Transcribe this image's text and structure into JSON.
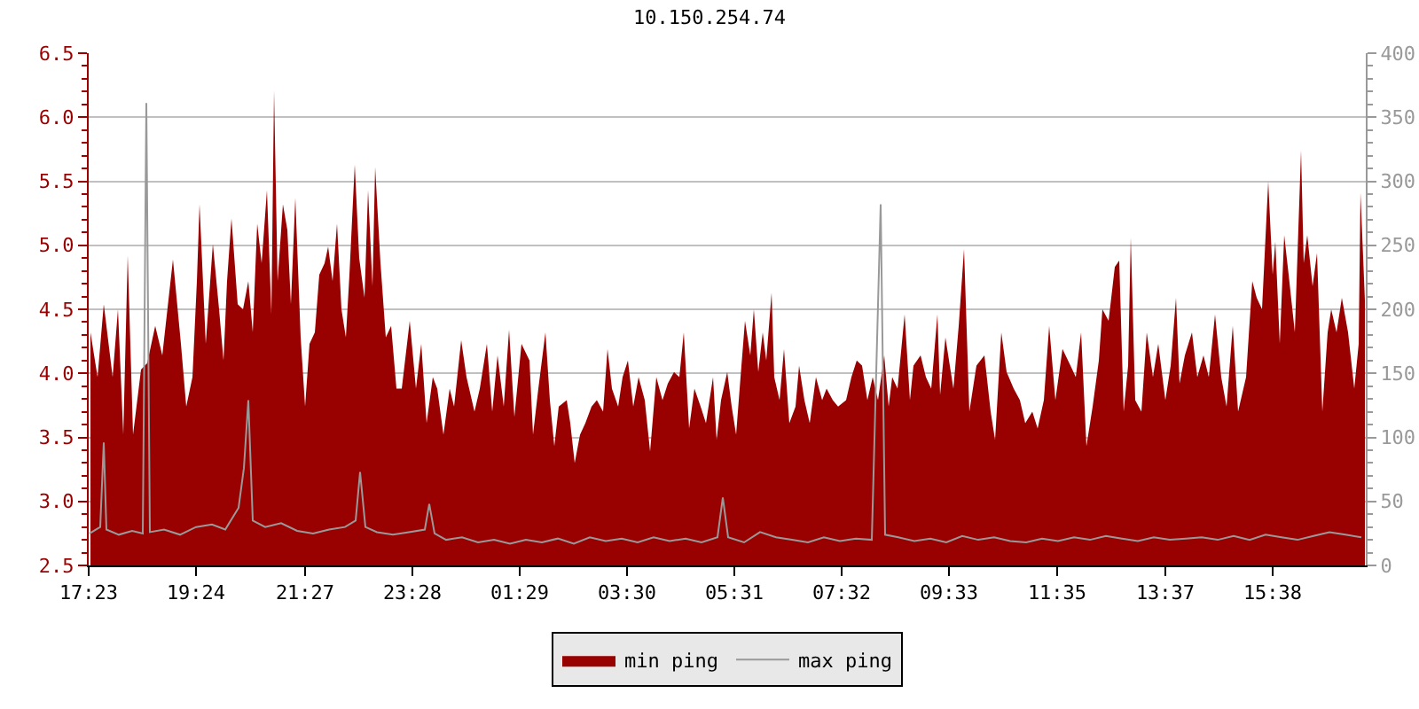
{
  "chart_data": {
    "type": "area",
    "title": "10.150.254.74",
    "grid": "y",
    "legend": "bottom",
    "xlim": [
      "--01-01T17:23",
      "--01-02T17:23"
    ],
    "xticks": [
      {
        "value": "--01-01T17:23",
        "label": "17:23"
      },
      {
        "value": "--01-01T19:24",
        "label": "19:24"
      },
      {
        "value": "--01-01T21:27",
        "label": "21:27"
      },
      {
        "value": "--01-01T23:28",
        "label": "23:28"
      },
      {
        "value": "--01-02T01:29",
        "label": "01:29"
      },
      {
        "value": "--01-02T03:30",
        "label": "03:30"
      },
      {
        "value": "--01-02T05:31",
        "label": "05:31"
      },
      {
        "value": "--01-02T07:32",
        "label": "07:32"
      },
      {
        "value": "--01-02T09:33",
        "label": "09:33"
      },
      {
        "value": "--01-02T11:35",
        "label": "11:35"
      },
      {
        "value": "--01-02T13:37",
        "label": "13:37"
      },
      {
        "value": "--01-02T15:38",
        "label": "15:38"
      }
    ],
    "ylim": [
      2.5,
      6.5
    ],
    "yticks": [
      2.5,
      {
        "value": 3,
        "label": "3.0"
      },
      3.5,
      {
        "value": 4,
        "label": "4.0"
      },
      4.5,
      {
        "value": 5,
        "label": "5.0"
      },
      5.5,
      {
        "value": 6,
        "label": "6.0"
      },
      6.5
    ],
    "y2lim": [
      0,
      400
    ],
    "y2ticks": [
      0,
      50,
      100,
      150,
      200,
      250,
      300,
      350,
      400
    ],
    "series": [
      {
        "name": "min ping",
        "type": "area",
        "color": "#990000",
        "x": [
          "--01-01T17:25",
          "--01-01T17:33",
          "--01-01T17:40",
          "--01-01T17:50",
          "--01-01T17:56",
          "--01-01T18:02",
          "--01-01T18:07",
          "--01-01T18:13",
          "--01-01T18:22",
          "--01-01T18:29",
          "--01-01T18:38",
          "--01-01T18:46",
          "--01-01T18:58",
          "--01-01T19:07",
          "--01-01T19:13",
          "--01-01T19:20",
          "--01-01T19:25",
          "--01-01T19:28",
          "--01-01T19:35",
          "--01-01T19:43",
          "--01-01T19:50",
          "--01-01T19:55",
          "--01-01T19:59",
          "--01-01T20:04",
          "--01-01T20:11",
          "--01-01T20:17",
          "--01-01T20:23",
          "--01-01T20:28",
          "--01-01T20:33",
          "--01-01T20:38",
          "--01-01T20:44",
          "--01-01T20:49",
          "--01-01T20:52",
          "--01-01T20:56",
          "--01-01T21:02",
          "--01-01T21:07",
          "--01-01T21:11",
          "--01-01T21:16",
          "--01-01T21:22",
          "--01-01T21:27",
          "--01-01T21:32",
          "--01-01T21:38",
          "--01-01T21:43",
          "--01-01T21:49",
          "--01-01T21:53",
          "--01-01T21:58",
          "--01-01T22:03",
          "--01-01T22:08",
          "--01-01T22:13",
          "--01-01T22:17",
          "--01-01T22:23",
          "--01-01T22:28",
          "--01-01T22:34",
          "--01-01T22:38",
          "--01-01T22:43",
          "--01-01T22:46",
          "--01-01T22:52",
          "--01-01T22:58",
          "--01-01T23:04",
          "--01-01T23:10",
          "--01-01T23:16",
          "--01-01T23:25",
          "--01-01T23:32",
          "--01-01T23:38",
          "--01-01T23:44",
          "--01-01T23:51",
          "--01-01T23:56",
          "--01-02T00:03",
          "--01-02T00:10",
          "--01-02T00:15",
          "--01-02T00:23",
          "--01-02T00:29",
          "--01-02T00:38",
          "--01-02T00:44",
          "--01-02T00:52",
          "--01-02T00:58",
          "--01-02T01:04",
          "--01-02T01:11",
          "--01-02T01:17",
          "--01-02T01:23",
          "--01-02T01:31",
          "--01-02T01:40",
          "--01-02T01:44",
          "--01-02T01:50",
          "--01-02T01:58",
          "--01-02T02:03",
          "--01-02T02:08",
          "--01-02T02:13",
          "--01-02T02:22",
          "--01-02T02:26",
          "--01-02T02:31",
          "--01-02T02:37",
          "--01-02T02:43",
          "--01-02T02:50",
          "--01-02T02:56",
          "--01-02T03:03",
          "--01-02T03:08",
          "--01-02T03:13",
          "--01-02T03:20",
          "--01-02T03:25",
          "--01-02T03:31",
          "--01-02T03:37",
          "--01-02T03:43",
          "--01-02T03:50",
          "--01-02T03:56",
          "--01-02T04:03",
          "--01-02T04:10",
          "--01-02T04:16",
          "--01-02T04:23",
          "--01-02T04:29",
          "--01-02T04:34",
          "--01-02T04:40",
          "--01-02T04:46",
          "--01-02T04:53",
          "--01-02T04:59",
          "--01-02T05:07",
          "--01-02T05:11",
          "--01-02T05:16",
          "--01-02T05:23",
          "--01-02T05:28",
          "--01-02T05:33",
          "--01-02T05:38",
          "--01-02T05:43",
          "--01-02T05:49",
          "--01-02T05:53",
          "--01-02T05:58",
          "--01-02T06:03",
          "--01-02T06:07",
          "--01-02T06:13",
          "--01-02T06:16",
          "--01-02T06:22",
          "--01-02T06:27",
          "--01-02T06:33",
          "--01-02T06:40",
          "--01-02T06:44",
          "--01-02T06:50",
          "--01-02T06:56",
          "--01-02T07:03",
          "--01-02T07:10",
          "--01-02T07:15",
          "--01-02T07:22",
          "--01-02T07:28",
          "--01-02T07:37",
          "--01-02T07:43",
          "--01-02T07:49",
          "--01-02T07:55",
          "--01-02T08:01",
          "--01-02T08:07",
          "--01-02T08:13",
          "--01-02T08:20",
          "--01-02T08:25",
          "--01-02T08:29",
          "--01-02T08:35",
          "--01-02T08:43",
          "--01-02T08:49",
          "--01-02T08:53",
          "--01-02T09:01",
          "--01-02T09:07",
          "--01-02T09:13",
          "--01-02T09:20",
          "--01-02T09:23",
          "--01-02T09:29",
          "--01-02T09:38",
          "--01-02T09:44",
          "--01-02T09:50",
          "--01-02T09:56",
          "--01-02T10:04",
          "--01-02T10:13",
          "--01-02T10:20",
          "--01-02T10:25",
          "--01-02T10:32",
          "--01-02T10:38",
          "--01-02T10:46",
          "--01-02T10:53",
          "--01-02T10:59",
          "--01-02T11:07",
          "--01-02T11:13",
          "--01-02T11:20",
          "--01-02T11:26",
          "--01-02T11:33",
          "--01-02T11:41",
          "--01-02T11:50",
          "--01-02T11:56",
          "--01-02T12:02",
          "--01-02T12:08",
          "--01-02T12:15",
          "--01-02T12:22",
          "--01-02T12:26",
          "--01-02T12:33",
          "--01-02T12:40",
          "--01-02T12:45",
          "--01-02T12:50",
          "--01-02T12:55",
          "--01-02T12:58",
          "--01-02T13:03",
          "--01-02T13:10",
          "--01-02T13:16",
          "--01-02T13:23",
          "--01-02T13:29",
          "--01-02T13:37",
          "--01-02T13:43",
          "--01-02T13:49",
          "--01-02T13:53",
          "--01-02T13:59",
          "--01-02T14:07",
          "--01-02T14:13",
          "--01-02T14:20",
          "--01-02T14:26",
          "--01-02T14:33",
          "--01-02T14:40",
          "--01-02T14:46",
          "--01-02T14:53",
          "--01-02T14:59",
          "--01-02T15:08",
          "--01-02T15:15",
          "--01-02T15:20",
          "--01-02T15:26",
          "--01-02T15:33",
          "--01-02T15:38",
          "--01-02T15:41",
          "--01-02T15:46",
          "--01-02T15:51",
          "--01-02T15:56",
          "--01-02T16:03",
          "--01-02T16:10",
          "--01-02T16:13",
          "--01-02T16:17",
          "--01-02T16:23",
          "--01-02T16:28",
          "--01-02T16:34",
          "--01-02T16:40",
          "--01-02T16:44",
          "--01-02T16:50",
          "--01-02T16:56",
          "--01-02T17:03",
          "--01-02T17:10",
          "--01-02T17:15",
          "--01-02T17:17",
          "--01-02T17:22"
        ],
        "values": [
          4.32,
          3.97,
          4.54,
          3.97,
          4.5,
          3.52,
          4.92,
          3.52,
          4.03,
          4.08,
          4.37,
          4.14,
          4.89,
          4.23,
          3.74,
          3.97,
          4.72,
          5.32,
          4.23,
          5.01,
          4.5,
          4.1,
          4.72,
          5.21,
          4.54,
          4.5,
          4.72,
          4.32,
          5.17,
          4.86,
          5.43,
          4.46,
          6.21,
          4.72,
          5.32,
          5.12,
          4.54,
          5.37,
          4.28,
          3.74,
          4.23,
          4.32,
          4.77,
          4.86,
          4.99,
          4.72,
          5.17,
          4.5,
          4.28,
          4.77,
          5.63,
          4.9,
          4.59,
          5.43,
          4.68,
          5.61,
          4.86,
          4.28,
          4.37,
          3.88,
          3.88,
          4.41,
          3.88,
          4.23,
          3.61,
          3.97,
          3.88,
          3.52,
          3.88,
          3.74,
          4.26,
          3.97,
          3.7,
          3.88,
          4.23,
          3.7,
          4.14,
          3.74,
          4.34,
          3.66,
          4.23,
          4.1,
          3.52,
          3.88,
          4.32,
          3.79,
          3.43,
          3.74,
          3.79,
          3.61,
          3.3,
          3.52,
          3.61,
          3.74,
          3.79,
          3.7,
          4.19,
          3.88,
          3.74,
          3.97,
          4.1,
          3.74,
          3.97,
          3.79,
          3.39,
          3.97,
          3.79,
          3.92,
          4.01,
          3.97,
          4.32,
          3.57,
          3.88,
          3.74,
          3.61,
          3.97,
          3.48,
          3.79,
          4.01,
          3.74,
          3.52,
          3.97,
          4.41,
          4.14,
          4.5,
          4.01,
          4.32,
          4.1,
          4.63,
          3.97,
          3.79,
          4.19,
          3.61,
          3.74,
          4.06,
          3.79,
          3.61,
          3.97,
          3.79,
          3.88,
          3.79,
          3.74,
          3.79,
          3.97,
          4.1,
          4.06,
          3.79,
          3.97,
          3.79,
          4.14,
          3.74,
          3.97,
          3.88,
          4.46,
          3.79,
          4.06,
          4.14,
          3.97,
          3.88,
          4.46,
          3.83,
          4.28,
          3.88,
          4.37,
          4.97,
          3.7,
          4.06,
          4.14,
          3.7,
          3.48,
          4.32,
          4.01,
          3.88,
          3.79,
          3.61,
          3.7,
          3.57,
          3.79,
          4.37,
          3.79,
          4.19,
          4.06,
          3.97,
          4.32,
          3.43,
          3.74,
          4.1,
          4.5,
          4.41,
          4.83,
          4.88,
          3.7,
          4.06,
          5.06,
          3.79,
          3.7,
          4.32,
          3.97,
          4.23,
          3.79,
          4.06,
          4.59,
          3.92,
          4.14,
          4.32,
          3.97,
          4.14,
          3.97,
          4.46,
          3.97,
          3.74,
          4.37,
          3.7,
          3.97,
          4.72,
          4.59,
          4.5,
          5.5,
          4.77,
          5.03,
          4.23,
          5.08,
          4.77,
          4.32,
          5.74,
          4.86,
          5.08,
          4.68,
          4.94,
          3.7,
          4.32,
          4.5,
          4.32,
          4.59,
          4.32,
          3.88,
          4.23,
          5.41,
          4.57
        ]
      },
      {
        "name": "max ping",
        "type": "line",
        "axis": "y2",
        "color": "#999999",
        "x": [
          "--01-01T17:24",
          "--01-01T17:36",
          "--01-01T17:40",
          "--01-01T17:43",
          "--01-01T17:57",
          "--01-01T18:12",
          "--01-01T18:24",
          "--01-01T18:28",
          "--01-01T18:32",
          "--01-01T18:48",
          "--01-01T19:06",
          "--01-01T19:24",
          "--01-01T19:42",
          "--01-01T19:57",
          "--01-01T20:12",
          "--01-01T20:18",
          "--01-01T20:23",
          "--01-01T20:28",
          "--01-01T20:42",
          "--01-01T21:00",
          "--01-01T21:18",
          "--01-01T21:36",
          "--01-01T21:54",
          "--01-01T22:12",
          "--01-01T22:24",
          "--01-01T22:29",
          "--01-01T22:35",
          "--01-01T22:48",
          "--01-01T23:06",
          "--01-01T23:24",
          "--01-01T23:42",
          "--01-01T23:47",
          "--01-01T23:53",
          "--01-02T00:06",
          "--01-02T00:24",
          "--01-02T00:42",
          "--01-02T01:00",
          "--01-02T01:18",
          "--01-02T01:36",
          "--01-02T01:54",
          "--01-02T02:12",
          "--01-02T02:30",
          "--01-02T02:48",
          "--01-02T03:06",
          "--01-02T03:24",
          "--01-02T03:42",
          "--01-02T04:00",
          "--01-02T04:18",
          "--01-02T04:36",
          "--01-02T04:54",
          "--01-02T05:12",
          "--01-02T05:18",
          "--01-02T05:24",
          "--01-02T05:42",
          "--01-02T06:00",
          "--01-02T06:18",
          "--01-02T06:36",
          "--01-02T06:54",
          "--01-02T07:12",
          "--01-02T07:30",
          "--01-02T07:48",
          "--01-02T08:06",
          "--01-02T08:16",
          "--01-02T08:21",
          "--01-02T08:36",
          "--01-02T08:54",
          "--01-02T09:12",
          "--01-02T09:30",
          "--01-02T09:48",
          "--01-02T10:06",
          "--01-02T10:24",
          "--01-02T10:42",
          "--01-02T11:00",
          "--01-02T11:18",
          "--01-02T11:36",
          "--01-02T11:54",
          "--01-02T12:12",
          "--01-02T12:30",
          "--01-02T12:48",
          "--01-02T13:06",
          "--01-02T13:24",
          "--01-02T13:42",
          "--01-02T14:00",
          "--01-02T14:18",
          "--01-02T14:36",
          "--01-02T14:54",
          "--01-02T15:12",
          "--01-02T15:30",
          "--01-02T15:48",
          "--01-02T16:06",
          "--01-02T16:24",
          "--01-02T16:42",
          "--01-02T17:00",
          "--01-02T17:18"
        ],
        "values": [
          25,
          30,
          96,
          28,
          24,
          27,
          25,
          361,
          26,
          28,
          24,
          30,
          32,
          28,
          45,
          76,
          129,
          35,
          30,
          33,
          27,
          25,
          28,
          30,
          35,
          73,
          30,
          26,
          24,
          26,
          28,
          48,
          25,
          20,
          22,
          18,
          20,
          17,
          20,
          18,
          21,
          17,
          22,
          19,
          21,
          18,
          22,
          19,
          21,
          18,
          22,
          53,
          22,
          18,
          26,
          22,
          20,
          18,
          22,
          19,
          21,
          20,
          282,
          24,
          22,
          19,
          21,
          18,
          23,
          20,
          22,
          19,
          18,
          21,
          19,
          22,
          20,
          23,
          21,
          19,
          22,
          20,
          21,
          22,
          20,
          23,
          20,
          24,
          22,
          20,
          23,
          26,
          24,
          22
        ]
      }
    ]
  }
}
